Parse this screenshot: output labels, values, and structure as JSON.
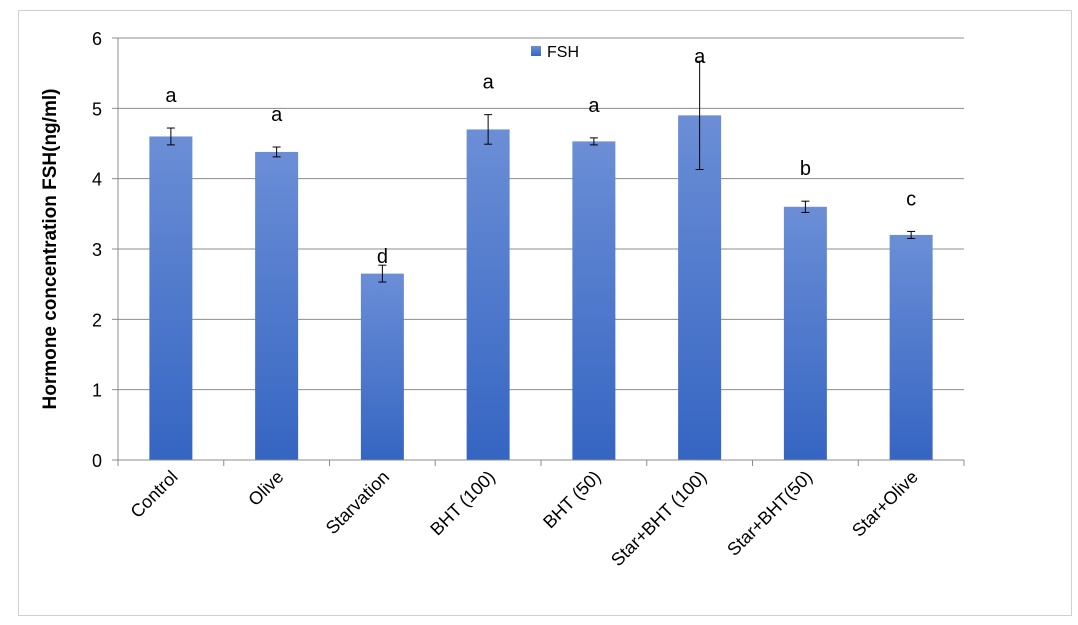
{
  "chart_data": {
    "type": "bar",
    "categories": [
      "Control",
      "Olive",
      "Starvation",
      "BHT (100)",
      "BHT (50)",
      "Star+BHT (100)",
      "Star+BHT(50)",
      "Star+Olive"
    ],
    "series": [
      {
        "name": "FSH",
        "values": [
          4.6,
          4.38,
          2.65,
          4.7,
          4.53,
          4.9,
          3.6,
          3.2
        ],
        "errors": [
          0.12,
          0.07,
          0.12,
          0.21,
          0.05,
          0.77,
          0.08,
          0.05
        ],
        "significance": [
          "a",
          "a",
          "d",
          "a",
          "a",
          "a",
          "b",
          "c"
        ]
      }
    ],
    "ylabel": "Hormone concentration FSH(ng/ml)",
    "xlabel": "",
    "ylim": [
      0,
      6
    ],
    "yticks": [
      0,
      1,
      2,
      3,
      4,
      5,
      6
    ],
    "grid": true,
    "legend_position": "top-center",
    "colors": {
      "bar_top": "#6b8ed6",
      "bar_bottom": "#3565c2",
      "grid": "#8c8c8c",
      "axis": "#8c8c8c"
    }
  }
}
